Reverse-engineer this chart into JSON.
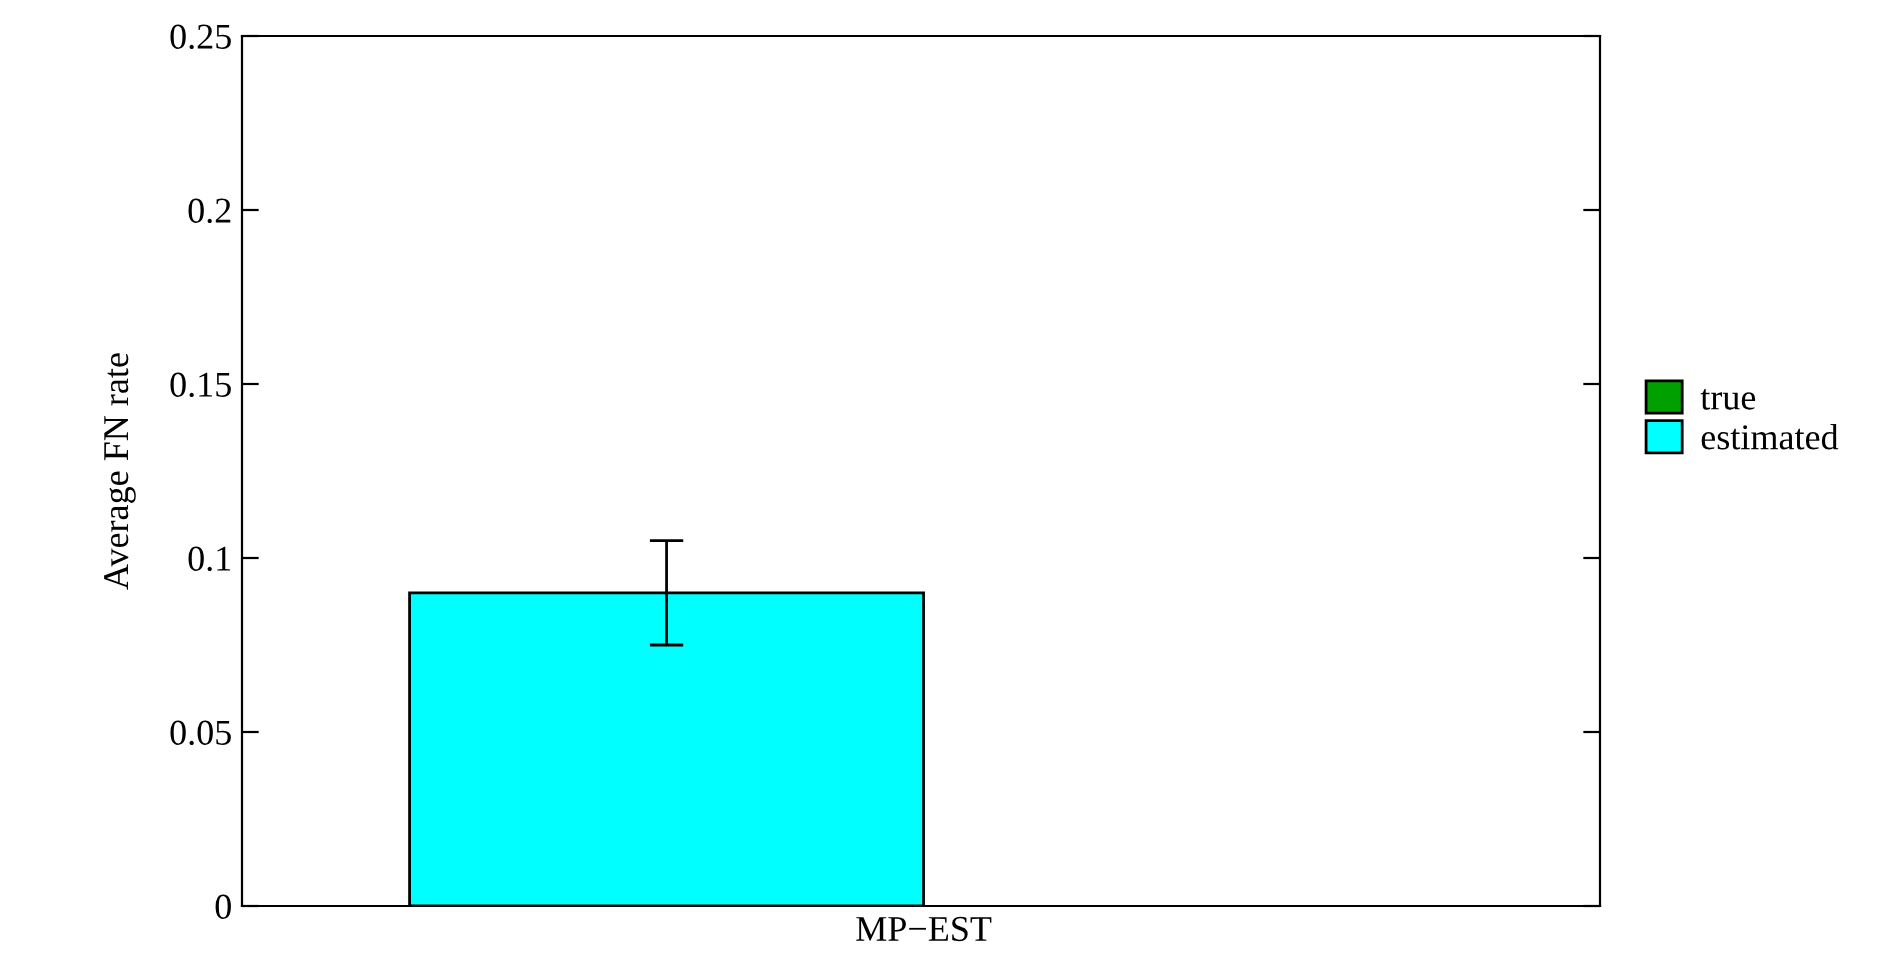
{
  "chart_data": {
    "type": "bar",
    "ylabel": "Average FN rate",
    "categories": [
      "MP−EST"
    ],
    "series": [
      {
        "name": "true",
        "color": "#00a000",
        "values": [
          null
        ]
      },
      {
        "name": "estimated",
        "color": "#00ffff",
        "values": [
          0.09
        ],
        "errors": [
          [
            0.075,
            0.105
          ]
        ]
      }
    ],
    "ylim": [
      0,
      0.25
    ],
    "yticks": [
      0,
      0.05,
      0.1,
      0.15,
      0.2,
      0.25
    ],
    "grid": false,
    "legend": "right"
  }
}
